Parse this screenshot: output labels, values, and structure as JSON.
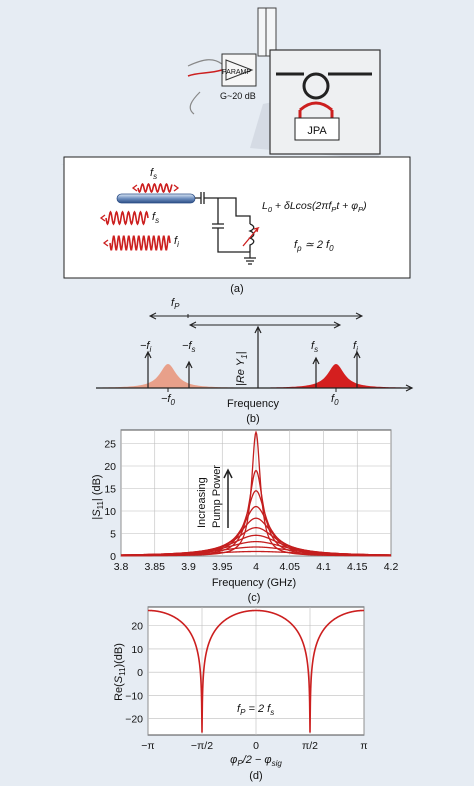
{
  "panel_a": {
    "paramp_label": "PARAMP",
    "gain_label": "G~20 dB",
    "jpa_label": "JPA",
    "fs_label": "f",
    "fs_sub": "s",
    "fi_label": "f",
    "fi_sub": "i",
    "inductance_expr": "L",
    "inductance_sub": "0",
    "inductance_rest": " + δLcos(2πf",
    "inductance_sub2": "P",
    "inductance_rest2": "t + φ",
    "inductance_sub3": "P",
    "inductance_close": ")",
    "pump_relation": "f",
    "pump_relation_sub": "p",
    "pump_relation_rest": " ≃ 2 f",
    "pump_relation_sub2": "0",
    "caption": "(a)"
  },
  "panel_b": {
    "fp_label": "f",
    "fp_sub": "P",
    "neg_fi": "−f",
    "neg_fi_sub": "i",
    "neg_fs": "−f",
    "neg_fs_sub": "s",
    "re_y": "|Re Y",
    "re_y_sub": "1",
    "re_y_close": "|",
    "pos_fs": "f",
    "pos_fs_sub": "s",
    "pos_fi": "f",
    "pos_fi_sub": "i",
    "neg_f0": "−f",
    "neg_f0_sub": "0",
    "pos_f0": "f",
    "pos_f0_sub": "0",
    "xlabel": "Frequency",
    "caption": "(b)"
  },
  "panel_c": {
    "annotation_line1": "Increasing",
    "annotation_line2": "Pump Power",
    "ylabel": "|S11| (dB)",
    "xlabel": "Frequency (GHz)",
    "caption": "(c)",
    "x_ticks": [
      "3.8",
      "3.85",
      "3.9",
      "3.95",
      "4",
      "4.05",
      "4.1",
      "4.15",
      "4.2"
    ],
    "y_ticks": [
      "0",
      "5",
      "10",
      "15",
      "20",
      "25"
    ]
  },
  "panel_d": {
    "ylabel": "Re(S11)(dB)",
    "xlabel": "φP/2 − φsig",
    "annotation": "fP = 2 fs",
    "caption": "(d)",
    "x_ticks": [
      "−π",
      "−π/2",
      "0",
      "π/2",
      "π"
    ],
    "y_ticks": [
      "20",
      "10",
      "0",
      "−10",
      "−20"
    ]
  },
  "colors": {
    "background": "#e6ecf3",
    "red": "#cc1f1f",
    "pink": "#e8a08a",
    "grid": "#b8b8b8"
  },
  "chart_data": [
    {
      "type": "line",
      "x": [
        3.8,
        3.85,
        3.9,
        3.95,
        4.0,
        4.05,
        4.1,
        4.15,
        4.2
      ],
      "xlim": [
        3.8,
        4.2
      ],
      "ylim": [
        0,
        28
      ],
      "xlabel": "Frequency (GHz)",
      "ylabel": "|S11| (dB)",
      "grid": true,
      "series": [
        {
          "peak": 1.0,
          "width": 0.09
        },
        {
          "peak": 2.0,
          "width": 0.07
        },
        {
          "peak": 3.2,
          "width": 0.055
        },
        {
          "peak": 4.6,
          "width": 0.045
        },
        {
          "peak": 6.3,
          "width": 0.037
        },
        {
          "peak": 8.4,
          "width": 0.03
        },
        {
          "peak": 11.0,
          "width": 0.024
        },
        {
          "peak": 14.5,
          "width": 0.018
        },
        {
          "peak": 19.0,
          "width": 0.013
        },
        {
          "peak": 27.5,
          "width": 0.008
        }
      ]
    },
    {
      "type": "line",
      "xlim": [
        -3.1416,
        3.1416
      ],
      "ylim": [
        -27,
        28
      ],
      "xlabel": "φP/2 − φsig",
      "ylabel": "Re(S11)(dB)",
      "grid": true,
      "series": [
        {
          "max_db": 26.5,
          "dip_db": -26,
          "dip_positions": [
            -1.5708,
            1.5708
          ]
        }
      ]
    }
  ]
}
